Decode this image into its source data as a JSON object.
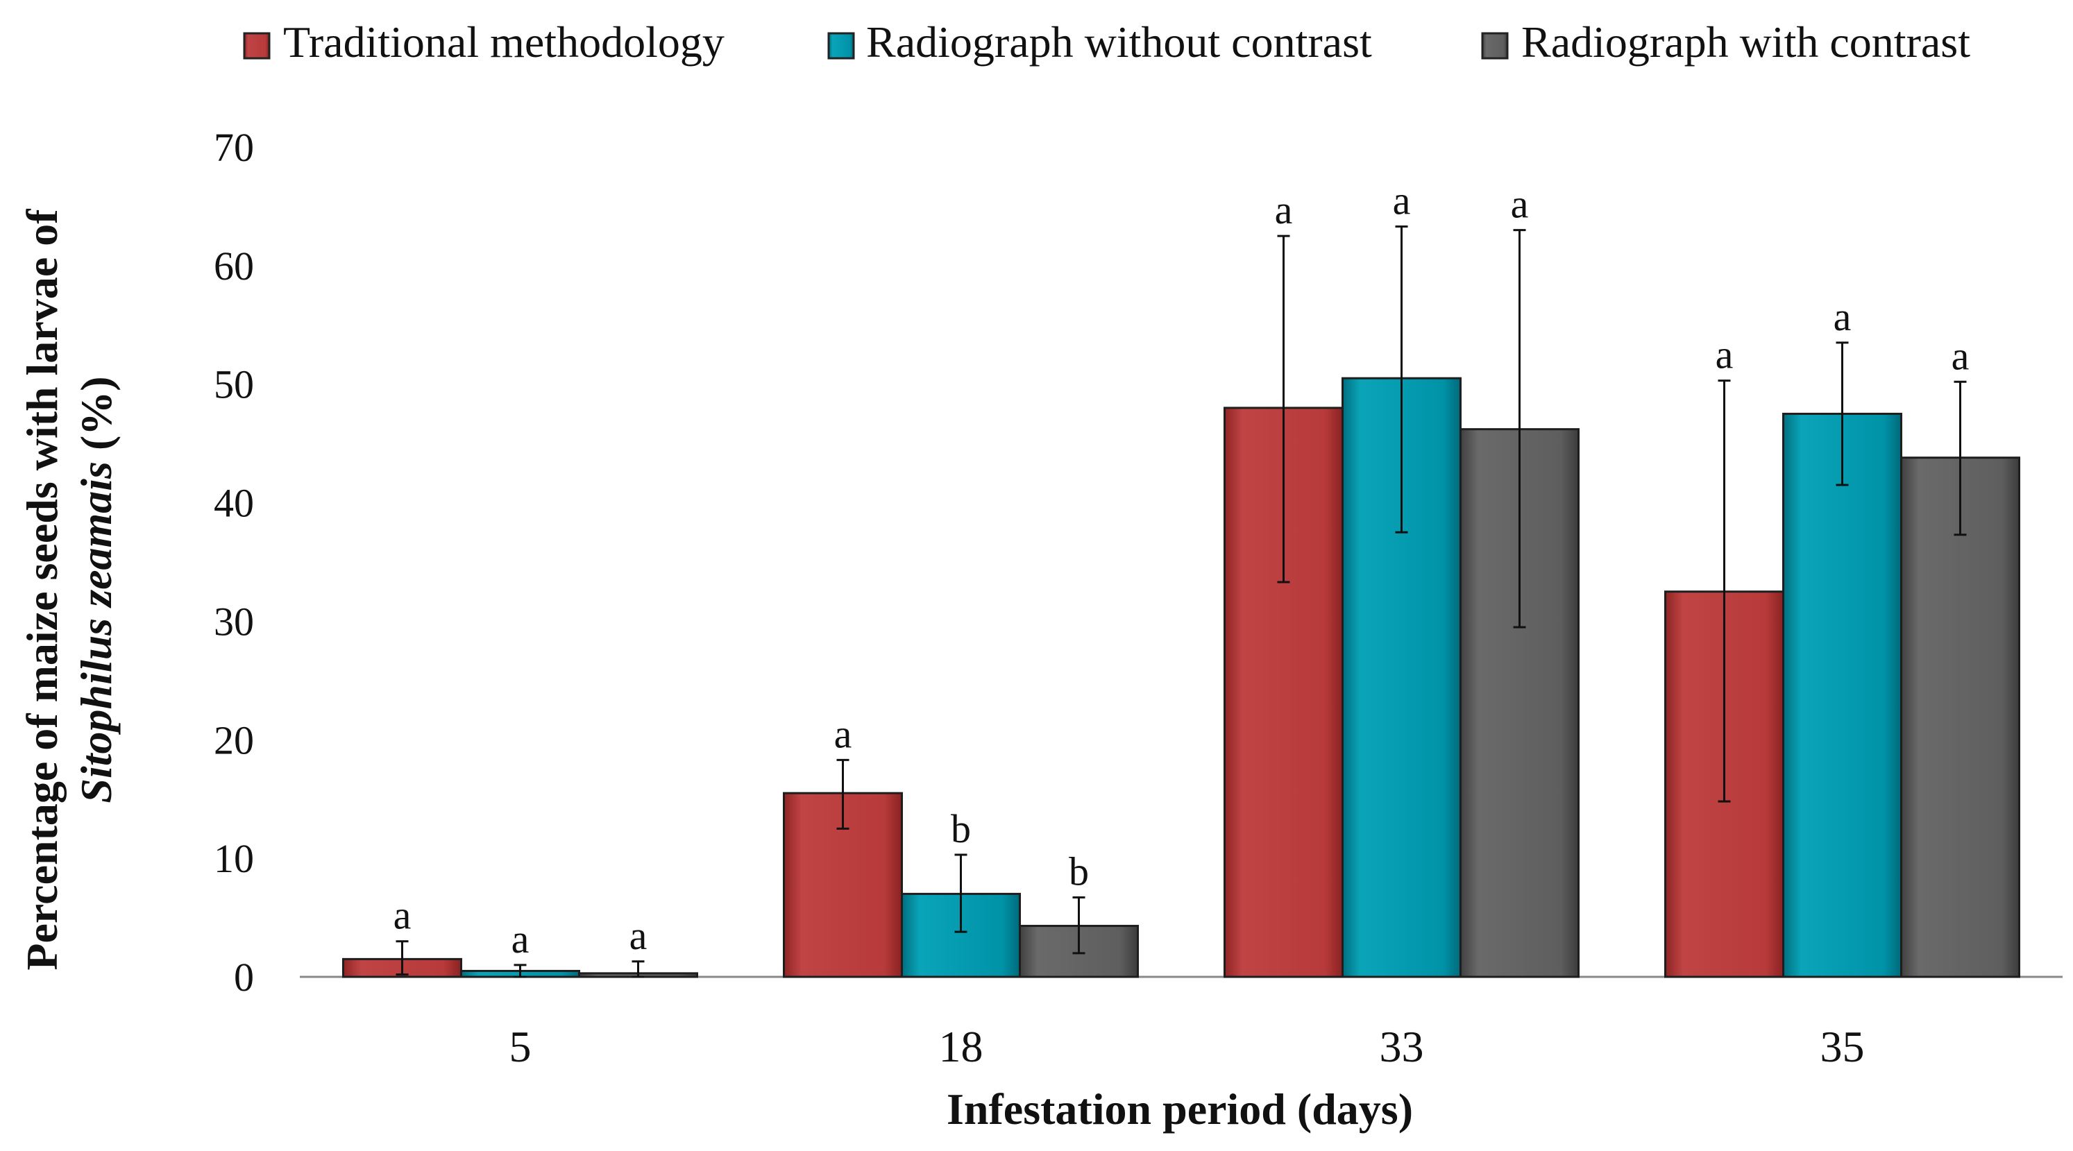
{
  "chart_data": {
    "type": "bar",
    "xlabel": "Infestation period (days)",
    "ylabel_line1": "Percentage of maize seeds with larvae of",
    "ylabel_line2_italic": "Sitophilus zeamais",
    "ylabel_line2_unit": "(%)",
    "ylim": [
      0,
      70
    ],
    "yticks": [
      0,
      10,
      20,
      30,
      40,
      50,
      60,
      70
    ],
    "categories": [
      "5",
      "18",
      "33",
      "35"
    ],
    "legend_position": "top",
    "series": [
      {
        "name": "Traditional methodology",
        "color": "#b83a3a",
        "values": [
          1.5,
          15.5,
          48.0,
          32.5
        ],
        "err_low": [
          0.2,
          12.5,
          33.3,
          14.8
        ],
        "err_high": [
          3.0,
          18.3,
          62.5,
          50.3
        ],
        "letters": [
          "a",
          "a",
          "a",
          "a"
        ]
      },
      {
        "name": "Radiograph without contrast",
        "color": "#0096aa",
        "values": [
          0.5,
          7.0,
          50.5,
          47.5
        ],
        "err_low": [
          0.0,
          3.8,
          37.5,
          41.5
        ],
        "err_high": [
          1.0,
          10.3,
          63.3,
          53.5
        ],
        "letters": [
          "a",
          "b",
          "a",
          "a"
        ]
      },
      {
        "name": "Radiograph with contrast",
        "color": "#5e5e5e",
        "values": [
          0.3,
          4.3,
          46.2,
          43.8
        ],
        "err_low": [
          0.0,
          2.0,
          29.5,
          37.3
        ],
        "err_high": [
          1.3,
          6.7,
          63.0,
          50.2
        ],
        "letters": [
          "a",
          "b",
          "a",
          "a"
        ]
      }
    ]
  }
}
